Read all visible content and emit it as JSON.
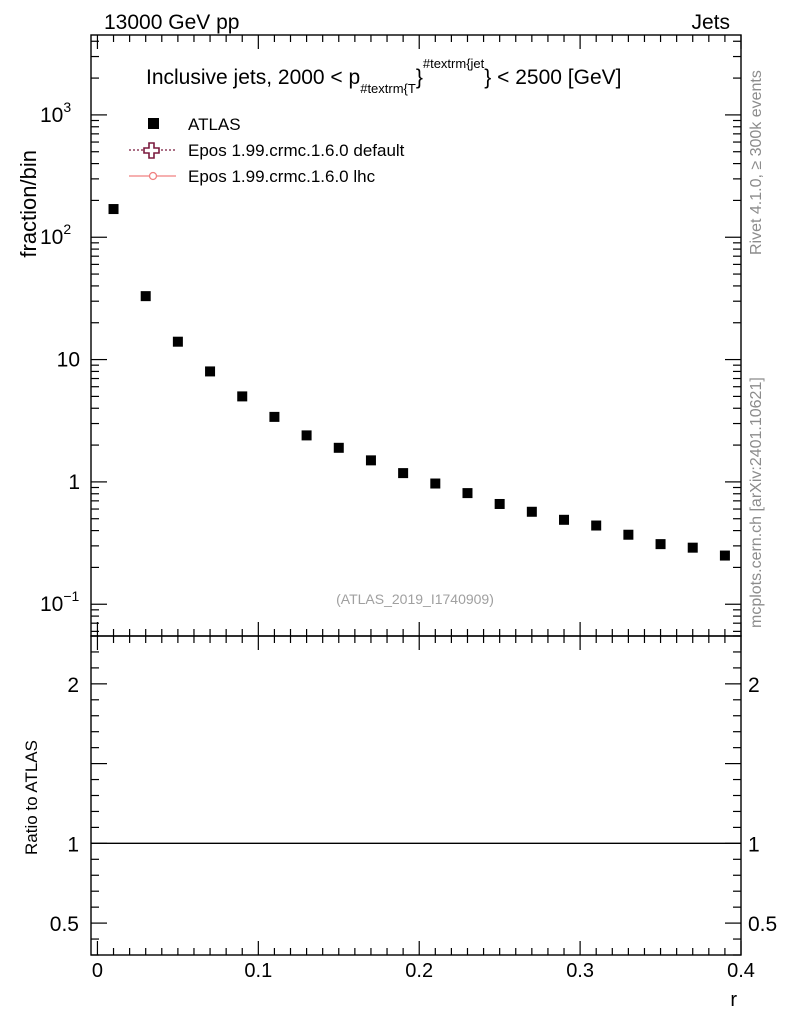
{
  "header": {
    "left": "13000 GeV pp",
    "right": "Jets"
  },
  "side_text": {
    "rivet": "Rivet 4.1.0, ≥ 300k events",
    "mcplots": "mcplots.cern.ch [arXiv:2401.10621]"
  },
  "chart_data": {
    "type": "scatter",
    "title": {
      "pre": "Inclusive jets, 2000 < p",
      "sub": "#textrm{T",
      "brace": "}",
      "sup": "#textrm{jet",
      "post": "} < 2500 [GeV]"
    },
    "analysis_label": "(ATLAS_2019_I1740909)",
    "xlabel": "r",
    "ylabel": "fraction/bin",
    "ratio_ylabel": "Ratio to ATLAS",
    "xlim": [
      -0.004,
      0.4
    ],
    "ylim": [
      0.055,
      4500
    ],
    "ylog": true,
    "ratio_ylim": [
      0.3,
      2.3
    ],
    "x_ticks": [
      {
        "value": 0,
        "label": "0"
      },
      {
        "value": 0.1,
        "label": "0.1"
      },
      {
        "value": 0.2,
        "label": "0.2"
      },
      {
        "value": 0.3,
        "label": "0.3"
      },
      {
        "value": 0.4,
        "label": "0.4"
      }
    ],
    "y_ticks": [
      {
        "value": 1000,
        "base": "10",
        "exp": "3"
      },
      {
        "value": 100,
        "base": "10",
        "exp": "2"
      },
      {
        "value": 10,
        "base": "10",
        "exp": ""
      },
      {
        "value": 1,
        "base": "1",
        "exp": ""
      },
      {
        "value": 0.1,
        "base": "10",
        "exp": "−1"
      }
    ],
    "ratio_ticks": [
      {
        "value": 2,
        "label": "2"
      },
      {
        "value": 1,
        "label": "1"
      },
      {
        "value": 0.5,
        "label": "0.5"
      }
    ],
    "legend": [
      {
        "name": "ATLAS",
        "style": "data",
        "color": "#000000"
      },
      {
        "name": "Epos 1.99.crmc.1.6.0 default",
        "style": "cross-dotted",
        "color": "#7b1a3e"
      },
      {
        "name": "Epos 1.99.crmc.1.6.0 lhc",
        "style": "circle-solid",
        "color": "#f08080"
      }
    ],
    "series": [
      {
        "name": "ATLAS",
        "x": [
          0.01,
          0.03,
          0.05,
          0.07,
          0.09,
          0.11,
          0.13,
          0.15,
          0.17,
          0.19,
          0.21,
          0.23,
          0.25,
          0.27,
          0.29,
          0.31,
          0.33,
          0.35,
          0.37,
          0.39
        ],
        "y": [
          170,
          33,
          14,
          8.0,
          5.0,
          3.4,
          2.4,
          1.9,
          1.5,
          1.18,
          0.97,
          0.81,
          0.66,
          0.57,
          0.49,
          0.44,
          0.37,
          0.31,
          0.29,
          0.25
        ]
      }
    ],
    "ratio_reference": 1
  }
}
